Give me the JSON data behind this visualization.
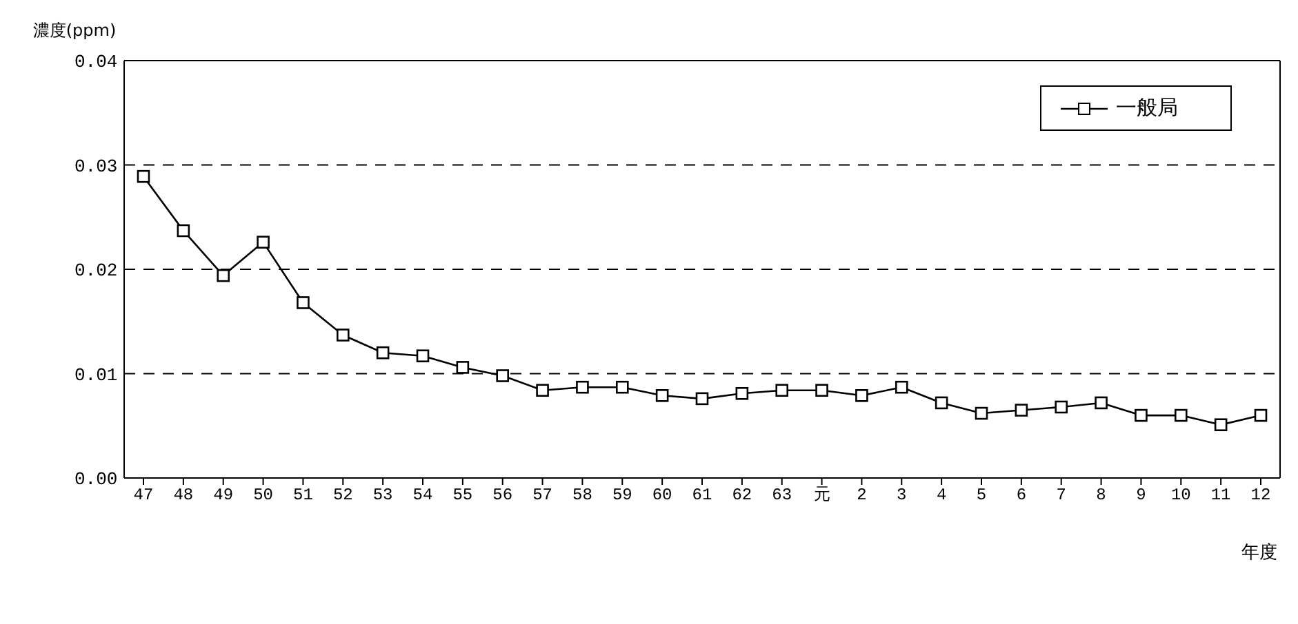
{
  "chart_data": {
    "type": "line",
    "xlabel": "年度",
    "ylabel": "濃度(ppm)",
    "categories": [
      "47",
      "48",
      "49",
      "50",
      "51",
      "52",
      "53",
      "54",
      "55",
      "56",
      "57",
      "58",
      "59",
      "60",
      "61",
      "62",
      "63",
      "元",
      "2",
      "3",
      "4",
      "5",
      "6",
      "7",
      "8",
      "9",
      "10",
      "11",
      "12"
    ],
    "series": [
      {
        "name": "一般局",
        "color": "#000000",
        "values": [
          0.0289,
          0.0237,
          0.0194,
          0.0226,
          0.0168,
          0.0137,
          0.012,
          0.0117,
          0.0106,
          0.0098,
          0.0084,
          0.0087,
          0.0087,
          0.0079,
          0.0076,
          0.0081,
          0.0084,
          0.0084,
          0.0079,
          0.0087,
          0.0072,
          0.0062,
          0.0065,
          0.0068,
          0.0072,
          0.006,
          0.006,
          0.0051,
          0.006
        ]
      }
    ],
    "ylim": [
      0,
      0.04
    ],
    "yticks": [
      {
        "value": 0,
        "label": "0.00"
      },
      {
        "value": 0.01,
        "label": "0.01"
      },
      {
        "value": 0.02,
        "label": "0.02"
      },
      {
        "value": 0.03,
        "label": "0.03"
      },
      {
        "value": 0.04,
        "label": "0.04"
      }
    ],
    "grid": "y",
    "legend": "top right",
    "marker": "square",
    "line_style": "solid"
  }
}
